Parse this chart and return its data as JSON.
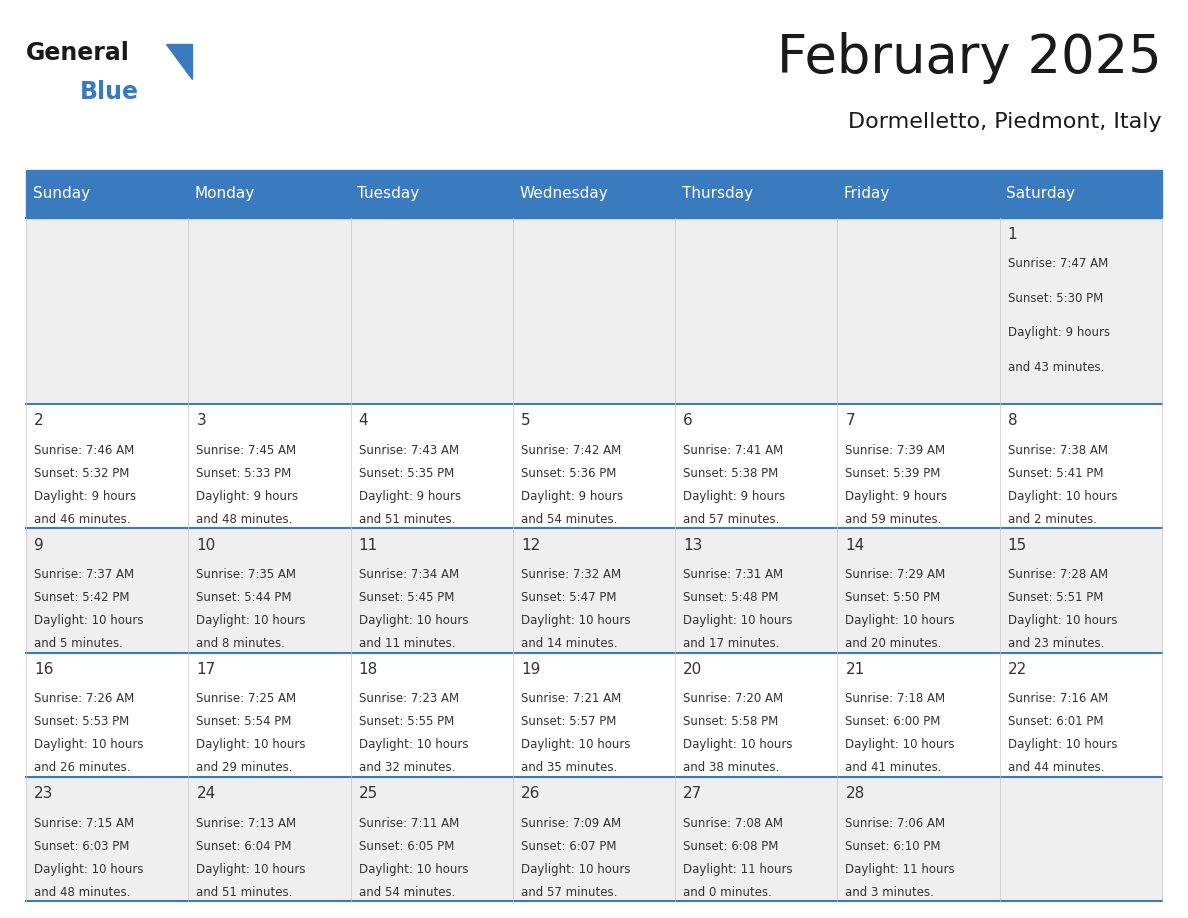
{
  "title": "February 2025",
  "subtitle": "Dormelletto, Piedmont, Italy",
  "header_color": "#3a7abf",
  "header_text_color": "#ffffff",
  "weekdays": [
    "Sunday",
    "Monday",
    "Tuesday",
    "Wednesday",
    "Thursday",
    "Friday",
    "Saturday"
  ],
  "background_color": "#ffffff",
  "cell_even_color": "#efefef",
  "cell_odd_color": "#ffffff",
  "border_color": "#3a7abf",
  "text_color": "#333333",
  "days": [
    {
      "day": 1,
      "col": 6,
      "row": 0,
      "sunrise": "7:47 AM",
      "sunset": "5:30 PM",
      "daylight": "9 hours and 43 minutes"
    },
    {
      "day": 2,
      "col": 0,
      "row": 1,
      "sunrise": "7:46 AM",
      "sunset": "5:32 PM",
      "daylight": "9 hours and 46 minutes"
    },
    {
      "day": 3,
      "col": 1,
      "row": 1,
      "sunrise": "7:45 AM",
      "sunset": "5:33 PM",
      "daylight": "9 hours and 48 minutes"
    },
    {
      "day": 4,
      "col": 2,
      "row": 1,
      "sunrise": "7:43 AM",
      "sunset": "5:35 PM",
      "daylight": "9 hours and 51 minutes"
    },
    {
      "day": 5,
      "col": 3,
      "row": 1,
      "sunrise": "7:42 AM",
      "sunset": "5:36 PM",
      "daylight": "9 hours and 54 minutes"
    },
    {
      "day": 6,
      "col": 4,
      "row": 1,
      "sunrise": "7:41 AM",
      "sunset": "5:38 PM",
      "daylight": "9 hours and 57 minutes"
    },
    {
      "day": 7,
      "col": 5,
      "row": 1,
      "sunrise": "7:39 AM",
      "sunset": "5:39 PM",
      "daylight": "9 hours and 59 minutes"
    },
    {
      "day": 8,
      "col": 6,
      "row": 1,
      "sunrise": "7:38 AM",
      "sunset": "5:41 PM",
      "daylight": "10 hours and 2 minutes"
    },
    {
      "day": 9,
      "col": 0,
      "row": 2,
      "sunrise": "7:37 AM",
      "sunset": "5:42 PM",
      "daylight": "10 hours and 5 minutes"
    },
    {
      "day": 10,
      "col": 1,
      "row": 2,
      "sunrise": "7:35 AM",
      "sunset": "5:44 PM",
      "daylight": "10 hours and 8 minutes"
    },
    {
      "day": 11,
      "col": 2,
      "row": 2,
      "sunrise": "7:34 AM",
      "sunset": "5:45 PM",
      "daylight": "10 hours and 11 minutes"
    },
    {
      "day": 12,
      "col": 3,
      "row": 2,
      "sunrise": "7:32 AM",
      "sunset": "5:47 PM",
      "daylight": "10 hours and 14 minutes"
    },
    {
      "day": 13,
      "col": 4,
      "row": 2,
      "sunrise": "7:31 AM",
      "sunset": "5:48 PM",
      "daylight": "10 hours and 17 minutes"
    },
    {
      "day": 14,
      "col": 5,
      "row": 2,
      "sunrise": "7:29 AM",
      "sunset": "5:50 PM",
      "daylight": "10 hours and 20 minutes"
    },
    {
      "day": 15,
      "col": 6,
      "row": 2,
      "sunrise": "7:28 AM",
      "sunset": "5:51 PM",
      "daylight": "10 hours and 23 minutes"
    },
    {
      "day": 16,
      "col": 0,
      "row": 3,
      "sunrise": "7:26 AM",
      "sunset": "5:53 PM",
      "daylight": "10 hours and 26 minutes"
    },
    {
      "day": 17,
      "col": 1,
      "row": 3,
      "sunrise": "7:25 AM",
      "sunset": "5:54 PM",
      "daylight": "10 hours and 29 minutes"
    },
    {
      "day": 18,
      "col": 2,
      "row": 3,
      "sunrise": "7:23 AM",
      "sunset": "5:55 PM",
      "daylight": "10 hours and 32 minutes"
    },
    {
      "day": 19,
      "col": 3,
      "row": 3,
      "sunrise": "7:21 AM",
      "sunset": "5:57 PM",
      "daylight": "10 hours and 35 minutes"
    },
    {
      "day": 20,
      "col": 4,
      "row": 3,
      "sunrise": "7:20 AM",
      "sunset": "5:58 PM",
      "daylight": "10 hours and 38 minutes"
    },
    {
      "day": 21,
      "col": 5,
      "row": 3,
      "sunrise": "7:18 AM",
      "sunset": "6:00 PM",
      "daylight": "10 hours and 41 minutes"
    },
    {
      "day": 22,
      "col": 6,
      "row": 3,
      "sunrise": "7:16 AM",
      "sunset": "6:01 PM",
      "daylight": "10 hours and 44 minutes"
    },
    {
      "day": 23,
      "col": 0,
      "row": 4,
      "sunrise": "7:15 AM",
      "sunset": "6:03 PM",
      "daylight": "10 hours and 48 minutes"
    },
    {
      "day": 24,
      "col": 1,
      "row": 4,
      "sunrise": "7:13 AM",
      "sunset": "6:04 PM",
      "daylight": "10 hours and 51 minutes"
    },
    {
      "day": 25,
      "col": 2,
      "row": 4,
      "sunrise": "7:11 AM",
      "sunset": "6:05 PM",
      "daylight": "10 hours and 54 minutes"
    },
    {
      "day": 26,
      "col": 3,
      "row": 4,
      "sunrise": "7:09 AM",
      "sunset": "6:07 PM",
      "daylight": "10 hours and 57 minutes"
    },
    {
      "day": 27,
      "col": 4,
      "row": 4,
      "sunrise": "7:08 AM",
      "sunset": "6:08 PM",
      "daylight": "11 hours and 0 minutes"
    },
    {
      "day": 28,
      "col": 5,
      "row": 4,
      "sunrise": "7:06 AM",
      "sunset": "6:10 PM",
      "daylight": "11 hours and 3 minutes"
    }
  ]
}
